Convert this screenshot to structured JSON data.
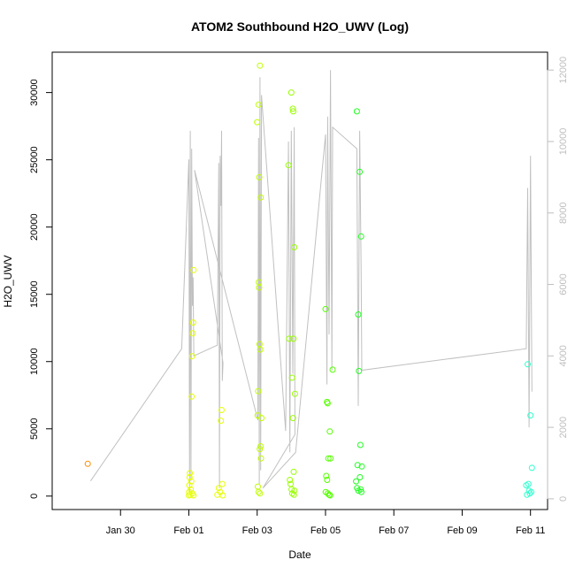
{
  "chart_data": {
    "type": "scatter",
    "title": "ATOM2 Southbound H2O_UWV (Log)",
    "xlabel": "Date",
    "ylabel": "H2O_UWV",
    "xlim": [
      "2024-01-28T00:00",
      "2024-02-11T12:00"
    ],
    "ylim": [
      -1000,
      33000
    ],
    "y2lim": [
      -300,
      12500
    ],
    "x_ticks": [
      {
        "label": "Jan 30",
        "date": "2024-01-30"
      },
      {
        "label": "Feb 01",
        "date": "2024-02-01"
      },
      {
        "label": "Feb 03",
        "date": "2024-02-03"
      },
      {
        "label": "Feb 05",
        "date": "2024-02-05"
      },
      {
        "label": "Feb 07",
        "date": "2024-02-07"
      },
      {
        "label": "Feb 09",
        "date": "2024-02-09"
      },
      {
        "label": "Feb 11",
        "date": "2024-02-11"
      }
    ],
    "y_ticks": [
      "0",
      "5000",
      "10000",
      "15000",
      "20000",
      "25000",
      "30000"
    ],
    "y2_ticks": [
      "0",
      "2000",
      "4000",
      "6000",
      "8000",
      "10000",
      "12000"
    ],
    "grid": false,
    "points_by_color": [
      {
        "color": "#ff8c00",
        "points": [
          [
            "2024-01-29T01:00",
            2400
          ]
        ]
      },
      {
        "color": "#e6ff00",
        "points": [
          [
            "2024-02-01T00:00",
            50
          ],
          [
            "2024-02-01T00:10",
            300
          ],
          [
            "2024-02-01T00:20",
            800
          ],
          [
            "2024-02-01T00:30",
            1400
          ],
          [
            "2024-02-01T00:40",
            1700
          ],
          [
            "2024-02-01T01:00",
            100
          ],
          [
            "2024-02-01T01:20",
            500
          ],
          [
            "2024-02-01T01:40",
            1100
          ],
          [
            "2024-02-01T02:00",
            7400
          ],
          [
            "2024-02-01T02:20",
            10400
          ],
          [
            "2024-02-01T02:40",
            12100
          ],
          [
            "2024-02-01T03:00",
            12900
          ],
          [
            "2024-02-01T03:20",
            16800
          ],
          [
            "2024-02-01T02:30",
            200
          ],
          [
            "2024-02-01T03:10",
            50
          ],
          [
            "2024-02-01T20:00",
            100
          ],
          [
            "2024-02-01T21:00",
            600
          ],
          [
            "2024-02-01T22:00",
            300
          ],
          [
            "2024-02-01T22:30",
            5600
          ],
          [
            "2024-02-01T23:00",
            6400
          ],
          [
            "2024-02-01T23:30",
            900
          ],
          [
            "2024-02-01T23:50",
            50
          ]
        ]
      },
      {
        "color": "#bfff00",
        "points": [
          [
            "2024-02-03T00:00",
            27800
          ],
          [
            "2024-02-03T01:00",
            29100
          ],
          [
            "2024-02-03T02:00",
            32000
          ],
          [
            "2024-02-03T01:30",
            23700
          ],
          [
            "2024-02-03T02:30",
            22200
          ],
          [
            "2024-02-03T01:10",
            15900
          ],
          [
            "2024-02-03T01:20",
            15500
          ],
          [
            "2024-02-03T01:40",
            11300
          ],
          [
            "2024-02-03T02:10",
            10900
          ],
          [
            "2024-02-03T00:40",
            7800
          ],
          [
            "2024-02-03T00:20",
            6000
          ],
          [
            "2024-02-03T03:00",
            5800
          ],
          [
            "2024-02-03T02:20",
            3700
          ],
          [
            "2024-02-03T01:50",
            3500
          ],
          [
            "2024-02-03T02:40",
            2800
          ],
          [
            "2024-02-03T00:30",
            700
          ],
          [
            "2024-02-03T01:00",
            300
          ],
          [
            "2024-02-03T02:00",
            200
          ]
        ]
      },
      {
        "color": "#99ff00",
        "points": [
          [
            "2024-02-03T22:00",
            24600
          ],
          [
            "2024-02-04T00:00",
            30000
          ],
          [
            "2024-02-04T01:00",
            28800
          ],
          [
            "2024-02-04T01:20",
            28600
          ],
          [
            "2024-02-04T02:00",
            18500
          ],
          [
            "2024-02-03T22:30",
            11700
          ],
          [
            "2024-02-04T01:30",
            11700
          ],
          [
            "2024-02-04T00:30",
            8800
          ],
          [
            "2024-02-04T02:30",
            7600
          ],
          [
            "2024-02-04T01:10",
            5800
          ],
          [
            "2024-02-04T01:40",
            1800
          ],
          [
            "2024-02-03T23:00",
            1200
          ],
          [
            "2024-02-03T23:30",
            900
          ],
          [
            "2024-02-04T00:10",
            500
          ],
          [
            "2024-02-04T02:10",
            400
          ],
          [
            "2024-02-04T00:40",
            200
          ],
          [
            "2024-02-04T01:50",
            100
          ]
        ]
      },
      {
        "color": "#55ff00",
        "points": [
          [
            "2024-02-05T00:00",
            13900
          ],
          [
            "2024-02-05T01:00",
            7000
          ],
          [
            "2024-02-05T01:30",
            6900
          ],
          [
            "2024-02-05T03:00",
            4800
          ],
          [
            "2024-02-05T02:00",
            2800
          ],
          [
            "2024-02-05T03:30",
            2800
          ],
          [
            "2024-02-05T05:00",
            9400
          ],
          [
            "2024-02-05T00:30",
            1500
          ],
          [
            "2024-02-05T01:10",
            1200
          ],
          [
            "2024-02-05T00:10",
            300
          ],
          [
            "2024-02-05T01:40",
            200
          ],
          [
            "2024-02-05T02:30",
            100
          ],
          [
            "2024-02-05T03:10",
            50
          ]
        ]
      },
      {
        "color": "#22ff22",
        "points": [
          [
            "2024-02-05T22:00",
            28600
          ],
          [
            "2024-02-06T00:00",
            24100
          ],
          [
            "2024-02-06T01:00",
            19300
          ],
          [
            "2024-02-05T23:00",
            13500
          ],
          [
            "2024-02-05T23:30",
            9300
          ],
          [
            "2024-02-06T00:30",
            3800
          ],
          [
            "2024-02-05T22:30",
            2300
          ],
          [
            "2024-02-06T01:30",
            2200
          ],
          [
            "2024-02-05T21:30",
            1100
          ],
          [
            "2024-02-06T00:10",
            1400
          ],
          [
            "2024-02-05T22:10",
            600
          ],
          [
            "2024-02-06T00:40",
            500
          ],
          [
            "2024-02-05T23:10",
            400
          ],
          [
            "2024-02-06T01:10",
            300
          ]
        ]
      },
      {
        "color": "#30ffcf",
        "points": [
          [
            "2024-02-10T22:00",
            9800
          ],
          [
            "2024-02-11T00:00",
            6000
          ],
          [
            "2024-02-11T01:00",
            2100
          ],
          [
            "2024-02-10T21:00",
            800
          ],
          [
            "2024-02-10T22:30",
            900
          ],
          [
            "2024-02-10T23:00",
            400
          ],
          [
            "2024-02-10T23:30",
            200
          ],
          [
            "2024-02-11T00:30",
            300
          ],
          [
            "2024-02-10T21:30",
            100
          ]
        ]
      }
    ],
    "line_series": {
      "axis": "right",
      "color": "#c0c0c0",
      "points": [
        [
          "2024-01-29T03:00",
          500
        ],
        [
          "2024-01-31T19:00",
          4200
        ],
        [
          "2024-02-01T00:00",
          9500
        ],
        [
          "2024-02-01T00:30",
          200
        ],
        [
          "2024-02-01T01:00",
          10300
        ],
        [
          "2024-02-01T01:30",
          500
        ],
        [
          "2024-02-01T02:00",
          9800
        ],
        [
          "2024-02-01T02:30",
          5400
        ],
        [
          "2024-02-01T03:00",
          6200
        ],
        [
          "2024-02-01T03:30",
          4000
        ],
        [
          "2024-02-01T20:00",
          4300
        ],
        [
          "2024-02-01T21:00",
          9400
        ],
        [
          "2024-02-01T21:30",
          300
        ],
        [
          "2024-02-01T22:00",
          9600
        ],
        [
          "2024-02-01T22:30",
          8200
        ],
        [
          "2024-02-01T23:00",
          10300
        ],
        [
          "2024-02-01T23:30",
          3300
        ],
        [
          "2024-02-02T00:00",
          3800
        ],
        [
          "2024-02-01T04:00",
          9200
        ],
        [
          "2024-02-03T00:30",
          2200
        ],
        [
          "2024-02-03T01:00",
          10100
        ],
        [
          "2024-02-03T01:30",
          400
        ],
        [
          "2024-02-03T02:00",
          11800
        ],
        [
          "2024-02-03T02:30",
          800
        ],
        [
          "2024-02-03T03:00",
          11300
        ],
        [
          "2024-02-03T20:00",
          1900
        ],
        [
          "2024-02-03T22:00",
          10000
        ],
        [
          "2024-02-03T23:00",
          1300
        ],
        [
          "2024-02-04T00:00",
          10300
        ],
        [
          "2024-02-04T01:00",
          3500
        ],
        [
          "2024-02-04T02:00",
          10400
        ],
        [
          "2024-02-04T02:30",
          1800
        ],
        [
          "2024-02-03T04:00",
          300
        ],
        [
          "2024-02-04T03:00",
          1300
        ],
        [
          "2024-02-05T00:00",
          10200
        ],
        [
          "2024-02-05T01:00",
          3200
        ],
        [
          "2024-02-05T01:30",
          10700
        ],
        [
          "2024-02-05T02:30",
          4600
        ],
        [
          "2024-02-05T03:30",
          12000
        ],
        [
          "2024-02-05T04:30",
          3600
        ],
        [
          "2024-02-05T05:00",
          10400
        ],
        [
          "2024-02-05T22:00",
          9800
        ],
        [
          "2024-02-05T23:00",
          2600
        ],
        [
          "2024-02-06T00:00",
          10300
        ],
        [
          "2024-02-06T01:00",
          6500
        ],
        [
          "2024-02-06T01:30",
          3600
        ],
        [
          "2024-02-10T21:00",
          4200
        ],
        [
          "2024-02-10T22:00",
          8700
        ],
        [
          "2024-02-10T23:00",
          2000
        ],
        [
          "2024-02-11T00:00",
          9600
        ],
        [
          "2024-02-11T01:00",
          3000
        ]
      ]
    }
  }
}
